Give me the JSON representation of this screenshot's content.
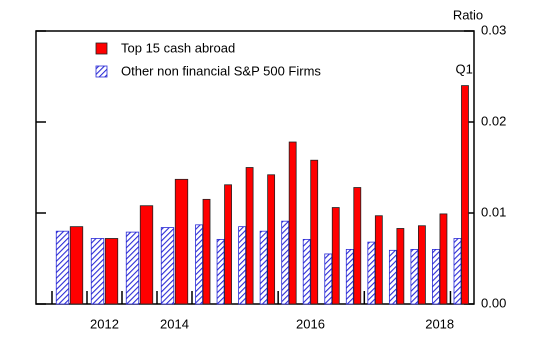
{
  "chart_data": {
    "type": "bar",
    "y_axis_label": "Ratio",
    "annotation": "Q1",
    "categories": [
      null,
      "2012",
      null,
      "2014",
      null,
      null,
      null,
      null,
      null,
      "2016",
      null,
      null,
      null,
      null,
      null,
      "2018",
      null
    ],
    "series": [
      {
        "name": "Top 15 cash abroad",
        "color": "#ff0000",
        "hatch": false,
        "values": [
          0.0085,
          0.0072,
          0.0108,
          0.0137,
          0.0115,
          0.0131,
          0.015,
          0.0142,
          0.0178,
          0.0158,
          0.0106,
          0.0128,
          0.0097,
          0.0083,
          0.0086,
          0.0099,
          0.024
        ]
      },
      {
        "name": "Other non financial S&P 500 Firms",
        "color": "#2b2bd6",
        "hatch": true,
        "values": [
          0.008,
          0.0072,
          0.0079,
          0.0084,
          0.0087,
          0.0071,
          0.0085,
          0.008,
          0.0091,
          0.0071,
          0.0055,
          0.006,
          0.0068,
          0.0059,
          0.006,
          0.006,
          0.0072
        ]
      }
    ],
    "ylim": [
      0,
      0.03
    ],
    "yticks": [
      {
        "value": 0,
        "label": "0.00"
      },
      {
        "value": 0.01,
        "label": "0.01"
      },
      {
        "value": 0.02,
        "label": "0.02"
      },
      {
        "value": 0.03,
        "label": "0.03"
      }
    ]
  }
}
